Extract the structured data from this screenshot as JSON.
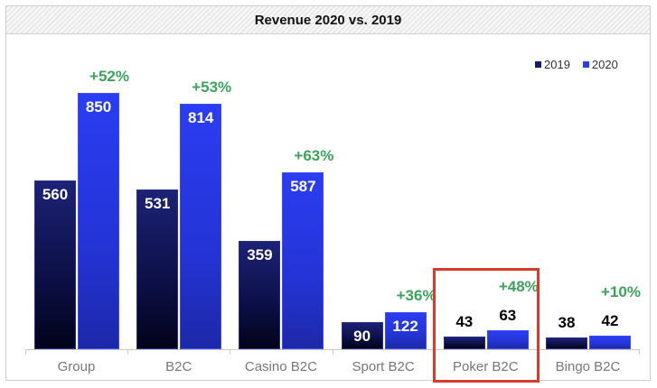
{
  "chart_data": {
    "type": "bar",
    "title": "Revenue 2020 vs. 2019",
    "xlabel": "",
    "ylabel": "",
    "categories": [
      "Group",
      "B2C",
      "Casino B2C",
      "Sport B2C",
      "Poker B2C",
      "Bingo B2C"
    ],
    "series": [
      {
        "name": "2019",
        "color": "#141a6a",
        "values": [
          560,
          531,
          359,
          90,
          43,
          38
        ]
      },
      {
        "name": "2020",
        "color": "#2b3df2",
        "values": [
          850,
          814,
          587,
          122,
          63,
          42
        ]
      }
    ],
    "annotations": [
      "+52%",
      "+53%",
      "+63%",
      "+36%",
      "+48%",
      "+10%"
    ],
    "annotation_color": "#3aa55a",
    "highlight": {
      "category": "Poker B2C",
      "color": "#d93a2b"
    },
    "legend_position": "top-right",
    "grid": false,
    "ylim": [
      0,
      900
    ]
  },
  "title": "Revenue 2020 vs. 2019",
  "legend": [
    {
      "label": "2019",
      "color": "#141a6a"
    },
    {
      "label": "2020",
      "color": "#2b3df2"
    }
  ],
  "groups": [
    {
      "label": "Group",
      "v2019": "560",
      "v2020": "850",
      "pct": "+52%"
    },
    {
      "label": "B2C",
      "v2019": "531",
      "v2020": "814",
      "pct": "+53%"
    },
    {
      "label": "Casino B2C",
      "v2019": "359",
      "v2020": "587",
      "pct": "+63%"
    },
    {
      "label": "Sport B2C",
      "v2019": "90",
      "v2020": "122",
      "pct": "+36%"
    },
    {
      "label": "Poker B2C",
      "v2019": "43",
      "v2020": "63",
      "pct": "+48%"
    },
    {
      "label": "Bingo B2C",
      "v2019": "38",
      "v2020": "42",
      "pct": "+10%"
    }
  ]
}
